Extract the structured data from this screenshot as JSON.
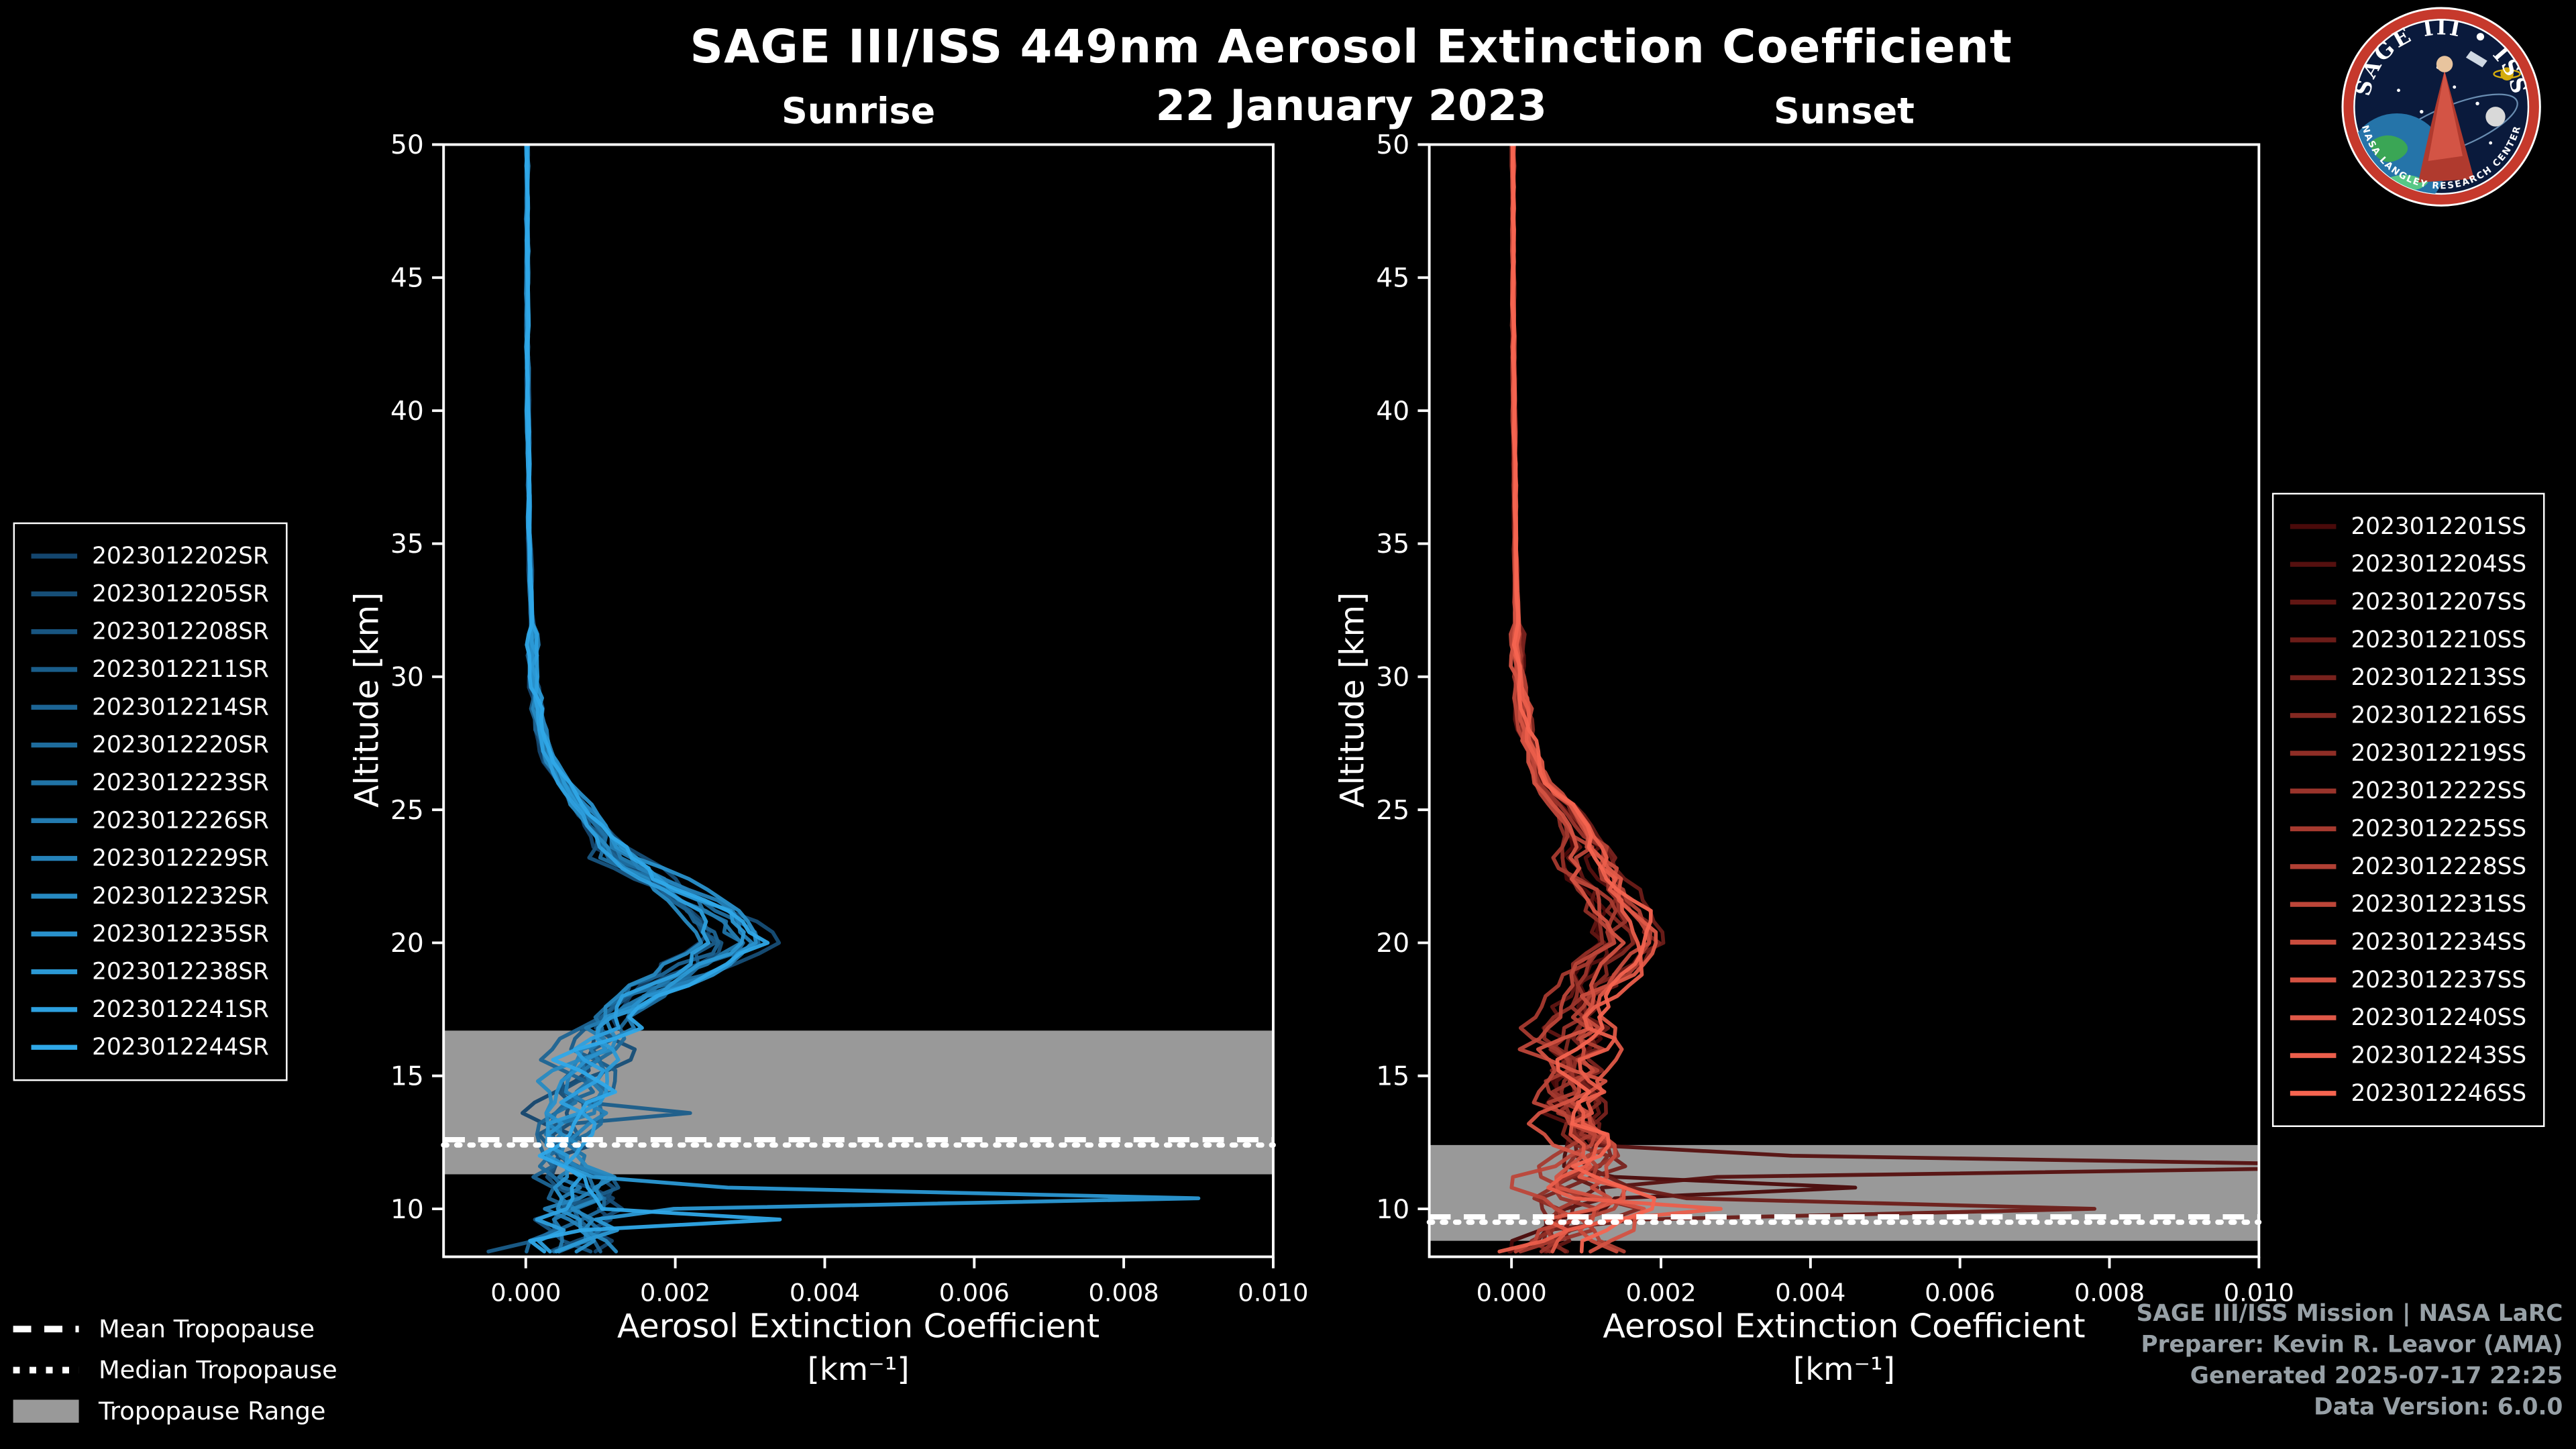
{
  "logo": {
    "title": "SAGE III • ISS",
    "ring_text": "NASA LANGLEY RESEARCH CENTER"
  },
  "axis": {
    "ylabel": "Altitude [km]",
    "xlabel_line1": "Aerosol Extinction Coefficient",
    "xlabel_line2": "[km⁻¹]"
  },
  "tropopause_legend": [
    {
      "label": "Mean Tropopause",
      "style": "dashed"
    },
    {
      "label": "Median Tropopause",
      "style": "dotted"
    },
    {
      "label": "Tropopause Range",
      "style": "band"
    }
  ],
  "credits": [
    "SAGE III/ISS Mission | NASA LaRC",
    "Preparer: Kevin R. Leavor (AMA)",
    "Generated 2025-07-17 22:25",
    "Data Version: 6.0.0"
  ],
  "chart_data": {
    "type": "line",
    "title": "SAGE III/ISS 449nm Aerosol Extinction Coefficient",
    "date_label": "22 January 2023",
    "xlabel": "Aerosol Extinction Coefficient [km⁻¹]",
    "ylabel": "Altitude [km]",
    "xlim": [
      -0.0011,
      0.01
    ],
    "ylim": [
      8.2,
      50
    ],
    "xticks": [
      0.0,
      0.002,
      0.004,
      0.006,
      0.008,
      0.01
    ],
    "yticks": [
      10,
      15,
      20,
      25,
      30,
      35,
      40,
      45,
      50
    ],
    "grid": false,
    "background": "#000000",
    "axis_color": "#ffffff",
    "tropopause_band_color": "#999999",
    "panels": [
      {
        "id": "sunrise",
        "title": "Sunrise",
        "tropopause": {
          "mean_km": 12.6,
          "median_km": 12.4,
          "range_km": [
            11.3,
            16.7
          ]
        },
        "base_profile": {
          "alt_km": [
            8.5,
            9,
            10,
            11,
            12,
            13,
            14,
            15,
            16,
            17,
            18,
            19,
            20,
            21,
            22,
            23,
            24,
            25,
            26,
            27,
            28,
            30,
            33,
            35,
            40,
            45,
            50
          ],
          "extinction": [
            0.0005,
            0.0007,
            0.0008,
            0.0007,
            0.0006,
            0.0006,
            0.0007,
            0.0008,
            0.0009,
            0.0011,
            0.0016,
            0.0024,
            0.003,
            0.0026,
            0.0019,
            0.0014,
            0.0011,
            0.0008,
            0.0005,
            0.0003,
            0.0002,
            0.00012,
            7e-05,
            5e-05,
            3e-05,
            2e-05,
            2e-05
          ]
        },
        "spikes": [
          {
            "series": "2023012238SR",
            "alt_km": 10.5,
            "extinction": 0.009
          },
          {
            "series": "2023012244SR",
            "alt_km": 9.4,
            "extinction": 0.0034
          },
          {
            "series": "2023012211SR",
            "alt_km": 13.6,
            "extinction": 0.0022
          }
        ],
        "series": [
          {
            "name": "2023012202SR",
            "color": "#14466e"
          },
          {
            "name": "2023012205SR",
            "color": "#164e77"
          },
          {
            "name": "2023012208SR",
            "color": "#185581"
          },
          {
            "name": "2023012211SR",
            "color": "#1a5d8a"
          },
          {
            "name": "2023012214SR",
            "color": "#1c6494"
          },
          {
            "name": "2023012220SR",
            "color": "#1e6c9d"
          },
          {
            "name": "2023012223SR",
            "color": "#2073a6"
          },
          {
            "name": "2023012226SR",
            "color": "#237bb0"
          },
          {
            "name": "2023012229SR",
            "color": "#2582b9"
          },
          {
            "name": "2023012232SR",
            "color": "#278ac2"
          },
          {
            "name": "2023012235SR",
            "color": "#2991cc"
          },
          {
            "name": "2023012238SR",
            "color": "#2b99d5"
          },
          {
            "name": "2023012241SR",
            "color": "#2da0df"
          },
          {
            "name": "2023012244SR",
            "color": "#2fa8e8"
          }
        ]
      },
      {
        "id": "sunset",
        "title": "Sunset",
        "tropopause": {
          "mean_km": 9.7,
          "median_km": 9.5,
          "range_km": [
            8.8,
            12.4
          ]
        },
        "base_profile": {
          "alt_km": [
            8.5,
            9,
            10,
            11,
            12,
            13,
            14,
            15,
            16,
            17,
            18,
            19,
            20,
            21,
            22,
            23,
            24,
            25,
            26,
            27,
            28,
            30,
            33,
            35,
            40,
            45,
            50
          ],
          "extinction": [
            0.0006,
            0.0008,
            0.001,
            0.0009,
            0.001,
            0.0009,
            0.0008,
            0.0009,
            0.0008,
            0.0008,
            0.0009,
            0.0012,
            0.0015,
            0.0014,
            0.0012,
            0.001,
            0.0009,
            0.0007,
            0.0004,
            0.00025,
            0.00018,
            0.0001,
            6e-05,
            5e-05,
            3e-05,
            2e-05,
            2e-05
          ]
        },
        "spikes": [
          {
            "series": "2023012204SS",
            "alt_km": 11.4,
            "extinction": 0.0125
          },
          {
            "series": "2023012210SS",
            "alt_km": 9.9,
            "extinction": 0.0078
          },
          {
            "series": "2023012201SS",
            "alt_km": 10.7,
            "extinction": 0.0046
          },
          {
            "series": "2023012243SS",
            "alt_km": 10.1,
            "extinction": 0.0028
          }
        ],
        "series": [
          {
            "name": "2023012201SS",
            "color": "#4a0a0a"
          },
          {
            "name": "2023012204SS",
            "color": "#55100f"
          },
          {
            "name": "2023012207SS",
            "color": "#611613"
          },
          {
            "name": "2023012210SS",
            "color": "#6c1c18"
          },
          {
            "name": "2023012213SS",
            "color": "#78221d"
          },
          {
            "name": "2023012216SS",
            "color": "#832821"
          },
          {
            "name": "2023012219SS",
            "color": "#8f2e26"
          },
          {
            "name": "2023012222SS",
            "color": "#9a342b"
          },
          {
            "name": "2023012225SS",
            "color": "#a63a2f"
          },
          {
            "name": "2023012228SS",
            "color": "#b14034"
          },
          {
            "name": "2023012231SS",
            "color": "#bd4639"
          },
          {
            "name": "2023012234SS",
            "color": "#c84c3d"
          },
          {
            "name": "2023012237SS",
            "color": "#d45242"
          },
          {
            "name": "2023012240SS",
            "color": "#df5847"
          },
          {
            "name": "2023012243SS",
            "color": "#eb5e4b"
          },
          {
            "name": "2023012246SS",
            "color": "#f66450"
          }
        ]
      }
    ]
  }
}
